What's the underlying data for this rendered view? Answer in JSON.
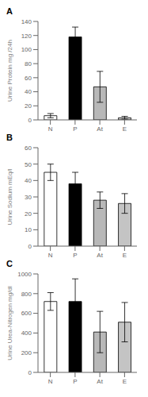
{
  "chart_data": [
    {
      "type": "bar",
      "title": "A",
      "ylabel": "Urine Protein mg /24h",
      "categories": [
        "N",
        "P",
        "At",
        "E"
      ],
      "values": [
        6,
        118,
        47,
        3
      ],
      "errors": [
        3,
        14,
        22,
        2
      ],
      "colors": [
        "white",
        "black",
        "#b8b8b8",
        "#c8c8c8"
      ],
      "ylim": [
        0,
        140
      ],
      "yticks": [
        0,
        20,
        40,
        60,
        80,
        100,
        120,
        140
      ]
    },
    {
      "type": "bar",
      "title": "B",
      "ylabel": "Urine Sodium mEq/l",
      "categories": [
        "N",
        "P",
        "At",
        "E"
      ],
      "values": [
        45,
        38,
        28,
        26
      ],
      "errors": [
        5,
        7,
        5,
        6
      ],
      "colors": [
        "white",
        "black",
        "#b8b8b8",
        "#c4c4c4"
      ],
      "ylim": [
        0,
        60
      ],
      "yticks": [
        0,
        10,
        20,
        30,
        40,
        50,
        60
      ]
    },
    {
      "type": "bar",
      "title": "C",
      "ylabel": "Urine Urea-Nitrogen mg/dl",
      "categories": [
        "N",
        "P",
        "At",
        "E"
      ],
      "values": [
        720,
        720,
        410,
        510
      ],
      "errors": [
        90,
        230,
        210,
        200
      ],
      "colors": [
        "white",
        "black",
        "#b8b8b8",
        "#c4c4c4"
      ],
      "ylim": [
        0,
        1000
      ],
      "yticks": [
        0,
        200,
        400,
        600,
        800,
        1000
      ]
    }
  ]
}
